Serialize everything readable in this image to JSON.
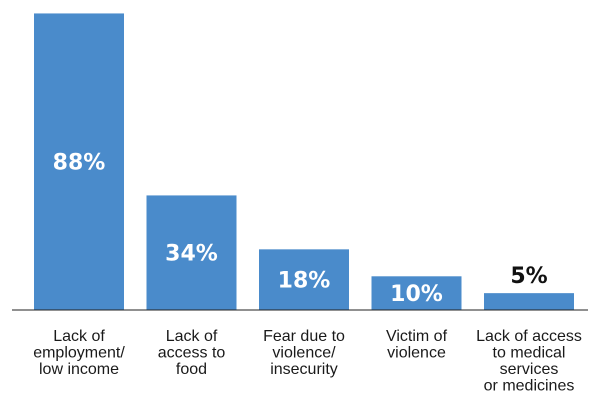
{
  "chart_data": {
    "type": "bar",
    "categories": [
      [
        "Lack of",
        "employment/",
        "low income"
      ],
      [
        "Lack of",
        "access to",
        "food"
      ],
      [
        "Fear due to",
        "violence/",
        "insecurity"
      ],
      [
        "Victim of",
        "violence"
      ],
      [
        "Lack of access",
        "to medical",
        "services",
        "or medicines"
      ]
    ],
    "values": [
      88,
      34,
      18,
      10,
      5
    ],
    "value_labels": [
      "88%",
      "34%",
      "18%",
      "10%",
      "5%"
    ],
    "ylim": [
      0,
      100
    ],
    "grid": false,
    "legend": "none",
    "colors": {
      "bar": "#4a8bcb",
      "label_inside": "#ffffff",
      "label_outside": "#111111"
    }
  }
}
